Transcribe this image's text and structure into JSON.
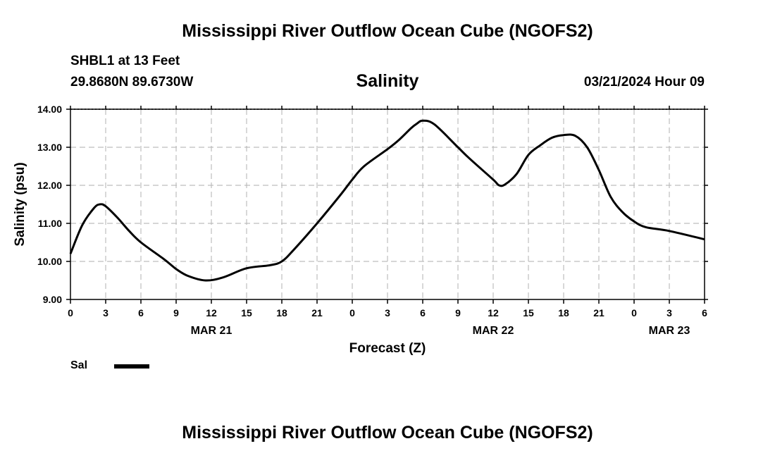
{
  "header": {
    "title": "Mississippi River Outflow Ocean Cube (NGOFS2)",
    "station": "SHBL1 at 13 Feet",
    "coordinates": "29.8680N  89.6730W",
    "parameter": "Salinity",
    "datetime": "03/21/2024 Hour 09"
  },
  "footer": {
    "title": "Mississippi River Outflow Ocean Cube (NGOFS2)"
  },
  "legend": {
    "label": "Sal",
    "color": "#000000"
  },
  "chart_data": {
    "type": "line",
    "title": "Salinity",
    "xlabel": "Forecast (Z)",
    "ylabel": "Salinity (psu)",
    "xlim": [
      0,
      54
    ],
    "ylim": [
      9.0,
      14.0
    ],
    "grid": true,
    "x_ticks": [
      0,
      3,
      6,
      9,
      12,
      15,
      18,
      21,
      24,
      27,
      30,
      33,
      36,
      39,
      42,
      45,
      48,
      51,
      54
    ],
    "x_tick_labels": [
      "0",
      "3",
      "6",
      "9",
      "12",
      "15",
      "18",
      "21",
      "0",
      "3",
      "6",
      "9",
      "12",
      "15",
      "18",
      "21",
      "0",
      "3",
      "6"
    ],
    "date_labels": [
      {
        "x": 12,
        "label": "MAR 21"
      },
      {
        "x": 36,
        "label": "MAR 22"
      },
      {
        "x": 51,
        "label": "MAR 23"
      }
    ],
    "y_ticks": [
      9.0,
      10.0,
      11.0,
      12.0,
      13.0,
      14.0
    ],
    "y_tick_labels": [
      "9.00",
      "10.00",
      "11.00",
      "12.00",
      "13.00",
      "14.00"
    ],
    "series": [
      {
        "name": "Sal",
        "x": [
          0,
          1,
          2,
          2.5,
          3,
          4,
          5,
          6,
          8,
          9,
          10,
          11.5,
          13,
          15,
          17,
          18,
          19,
          21,
          23,
          24,
          25,
          27,
          28,
          29,
          29.5,
          30,
          31,
          33,
          34,
          36,
          36.5,
          37,
          38,
          39,
          40,
          41,
          42,
          43,
          44,
          45,
          46,
          47,
          48,
          49,
          51,
          54
        ],
        "y": [
          10.2,
          10.95,
          11.4,
          11.5,
          11.45,
          11.15,
          10.8,
          10.5,
          10.05,
          9.8,
          9.62,
          9.5,
          9.58,
          9.82,
          9.9,
          10.0,
          10.3,
          11.0,
          11.75,
          12.15,
          12.5,
          12.95,
          13.2,
          13.5,
          13.62,
          13.7,
          13.6,
          13.0,
          12.7,
          12.15,
          12.0,
          12.02,
          12.3,
          12.8,
          13.05,
          13.25,
          13.32,
          13.3,
          13.0,
          12.4,
          11.7,
          11.3,
          11.05,
          10.9,
          10.8,
          10.58
        ]
      }
    ]
  }
}
